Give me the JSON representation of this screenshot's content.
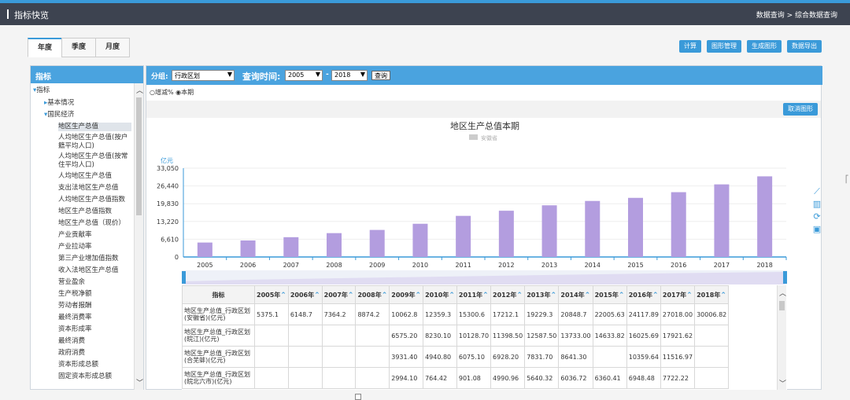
{
  "header": {
    "title": "指标快览",
    "breadcrumb": "数据查询 > 综合数据查询"
  },
  "tabs": [
    {
      "label": "年度"
    },
    {
      "label": "季度"
    },
    {
      "label": "月度"
    }
  ],
  "toolbar": {
    "buttons": [
      "计算",
      "图形管理",
      "生成图形",
      "数据导出"
    ]
  },
  "sidebar": {
    "title": "指标",
    "items": [
      "指标",
      "基本情况",
      "国民经济",
      "地区生产总值",
      "人均地区生产总值(按户籍平均人口)",
      "人均地区生产总值(按常住平均人口)",
      "人均地区生产总值",
      "支出法地区生产总值",
      "人均地区生产总值指数",
      "地区生产总值指数",
      "地区生产总值（现价）",
      "产业贡献率",
      "产业拉动率",
      "第三产业增加值指数",
      "收入法地区生产总值",
      "营业盈余",
      "生产税净额",
      "劳动者报酬",
      "最终消费率",
      "资本形成率",
      "最终消费",
      "政府消费",
      "资本形成总额",
      "固定资本形成总额"
    ]
  },
  "query": {
    "group_label": "分组:",
    "group_value": "行政区划",
    "time_label": "查询时间:",
    "from_year": "2005",
    "dash": "-",
    "to_year": "2018",
    "button": "查询",
    "radio_growth": "增减%",
    "radio_current": "本期",
    "cancel_chart": "取消图形"
  },
  "chart_data": {
    "type": "bar",
    "title": "地区生产总值本期",
    "legend": [
      "安徽省"
    ],
    "ylabel": "亿元",
    "categories": [
      "2005",
      "2006",
      "2007",
      "2008",
      "2009",
      "2010",
      "2011",
      "2012",
      "2013",
      "2014",
      "2015",
      "2016",
      "2017",
      "2018"
    ],
    "series": [
      {
        "name": "安徽省",
        "values": [
          5375.1,
          6148.7,
          7364.2,
          8874.2,
          10062.8,
          12359.3,
          15300.6,
          17212.1,
          19229.3,
          20848.7,
          22005.63,
          24117.89,
          27018.0,
          30006.82
        ]
      }
    ],
    "yticks": [
      "33,050",
      "26,440",
      "19,830",
      "13,220",
      "6,610",
      "0"
    ],
    "ylim": [
      0,
      33050
    ],
    "bar_color": "#b39ddf",
    "grid": true
  },
  "table": {
    "headers": [
      "指标",
      "2005年",
      "2006年",
      "2007年",
      "2008年",
      "2009年",
      "2010年",
      "2011年",
      "2012年",
      "2013年",
      "2014年",
      "2015年",
      "2016年",
      "2017年",
      "2018年"
    ],
    "rows": [
      [
        "地区生产总值_行政区划(安徽省)(亿元)",
        "5375.1",
        "6148.7",
        "7364.2",
        "8874.2",
        "10062.8",
        "12359.3",
        "15300.6",
        "17212.1",
        "19229.3",
        "20848.7",
        "22005.63",
        "24117.89",
        "27018.00",
        "30006.82"
      ],
      [
        "地区生产总值_行政区划(皖江)(亿元)",
        "",
        "",
        "",
        "",
        "6575.20",
        "8230.10",
        "10128.70",
        "11398.50",
        "12587.50",
        "13733.00",
        "14633.82",
        "16025.69",
        "17921.62",
        ""
      ],
      [
        "地区生产总值_行政区划(合芜蚌)(亿元)",
        "",
        "",
        "",
        "",
        "3931.40",
        "4940.80",
        "6075.10",
        "6928.20",
        "7831.70",
        "8641.30",
        "",
        "10359.64",
        "11516.97",
        ""
      ],
      [
        "地区生产总值_行政区划(皖北六市)(亿元)",
        "",
        "",
        "",
        "",
        "2994.10",
        "764.42",
        "901.08",
        "4990.96",
        "5640.32",
        "6036.72",
        "6360.41",
        "6948.48",
        "7722.22",
        ""
      ]
    ]
  },
  "side_icons": [
    "line-chart-icon",
    "bar-chart-icon",
    "refresh-icon",
    "save-icon"
  ],
  "colors": {
    "accent": "#3a9ad9",
    "header": "#3d4350",
    "bar": "#b39ddf"
  }
}
